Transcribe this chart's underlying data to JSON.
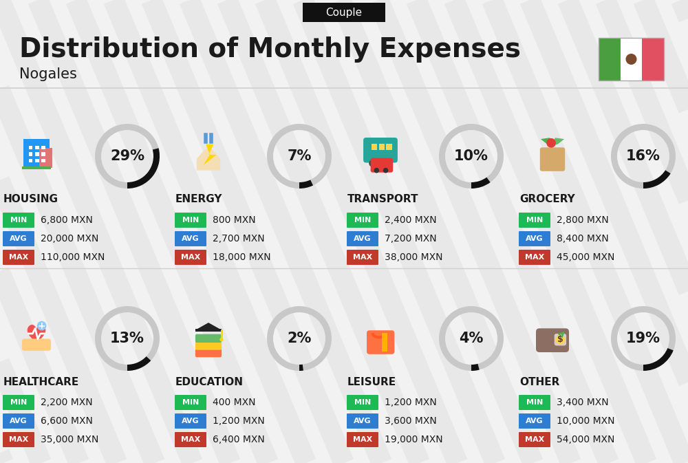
{
  "title": "Distribution of Monthly Expenses",
  "subtitle": "Nogales",
  "badge": "Couple",
  "bg_color": "#f2f2f2",
  "categories": [
    {
      "name": "HOUSING",
      "pct": 29,
      "icon": "housing",
      "min_val": "6,800 MXN",
      "avg_val": "20,000 MXN",
      "max_val": "110,000 MXN",
      "row": 0,
      "col": 0
    },
    {
      "name": "ENERGY",
      "pct": 7,
      "icon": "energy",
      "min_val": "800 MXN",
      "avg_val": "2,700 MXN",
      "max_val": "18,000 MXN",
      "row": 0,
      "col": 1
    },
    {
      "name": "TRANSPORT",
      "pct": 10,
      "icon": "transport",
      "min_val": "2,400 MXN",
      "avg_val": "7,200 MXN",
      "max_val": "38,000 MXN",
      "row": 0,
      "col": 2
    },
    {
      "name": "GROCERY",
      "pct": 16,
      "icon": "grocery",
      "min_val": "2,800 MXN",
      "avg_val": "8,400 MXN",
      "max_val": "45,000 MXN",
      "row": 0,
      "col": 3
    },
    {
      "name": "HEALTHCARE",
      "pct": 13,
      "icon": "healthcare",
      "min_val": "2,200 MXN",
      "avg_val": "6,600 MXN",
      "max_val": "35,000 MXN",
      "row": 1,
      "col": 0
    },
    {
      "name": "EDUCATION",
      "pct": 2,
      "icon": "education",
      "min_val": "400 MXN",
      "avg_val": "1,200 MXN",
      "max_val": "6,400 MXN",
      "row": 1,
      "col": 1
    },
    {
      "name": "LEISURE",
      "pct": 4,
      "icon": "leisure",
      "min_val": "1,200 MXN",
      "avg_val": "3,600 MXN",
      "max_val": "19,000 MXN",
      "row": 1,
      "col": 2
    },
    {
      "name": "OTHER",
      "pct": 19,
      "icon": "other",
      "min_val": "3,400 MXN",
      "avg_val": "10,000 MXN",
      "max_val": "54,000 MXN",
      "row": 1,
      "col": 3
    }
  ],
  "min_color": "#1db954",
  "avg_color": "#2d7dd2",
  "max_color": "#c0392b",
  "text_color": "#1a1a1a",
  "ring_filled_color": "#111111",
  "ring_empty_color": "#c8c8c8",
  "divider_color": "#d0d0d0",
  "stripe_color": "#e8e8e8",
  "flag_green": "#4a9e3f",
  "flag_red": "#e05060",
  "flag_white": "#ffffff"
}
